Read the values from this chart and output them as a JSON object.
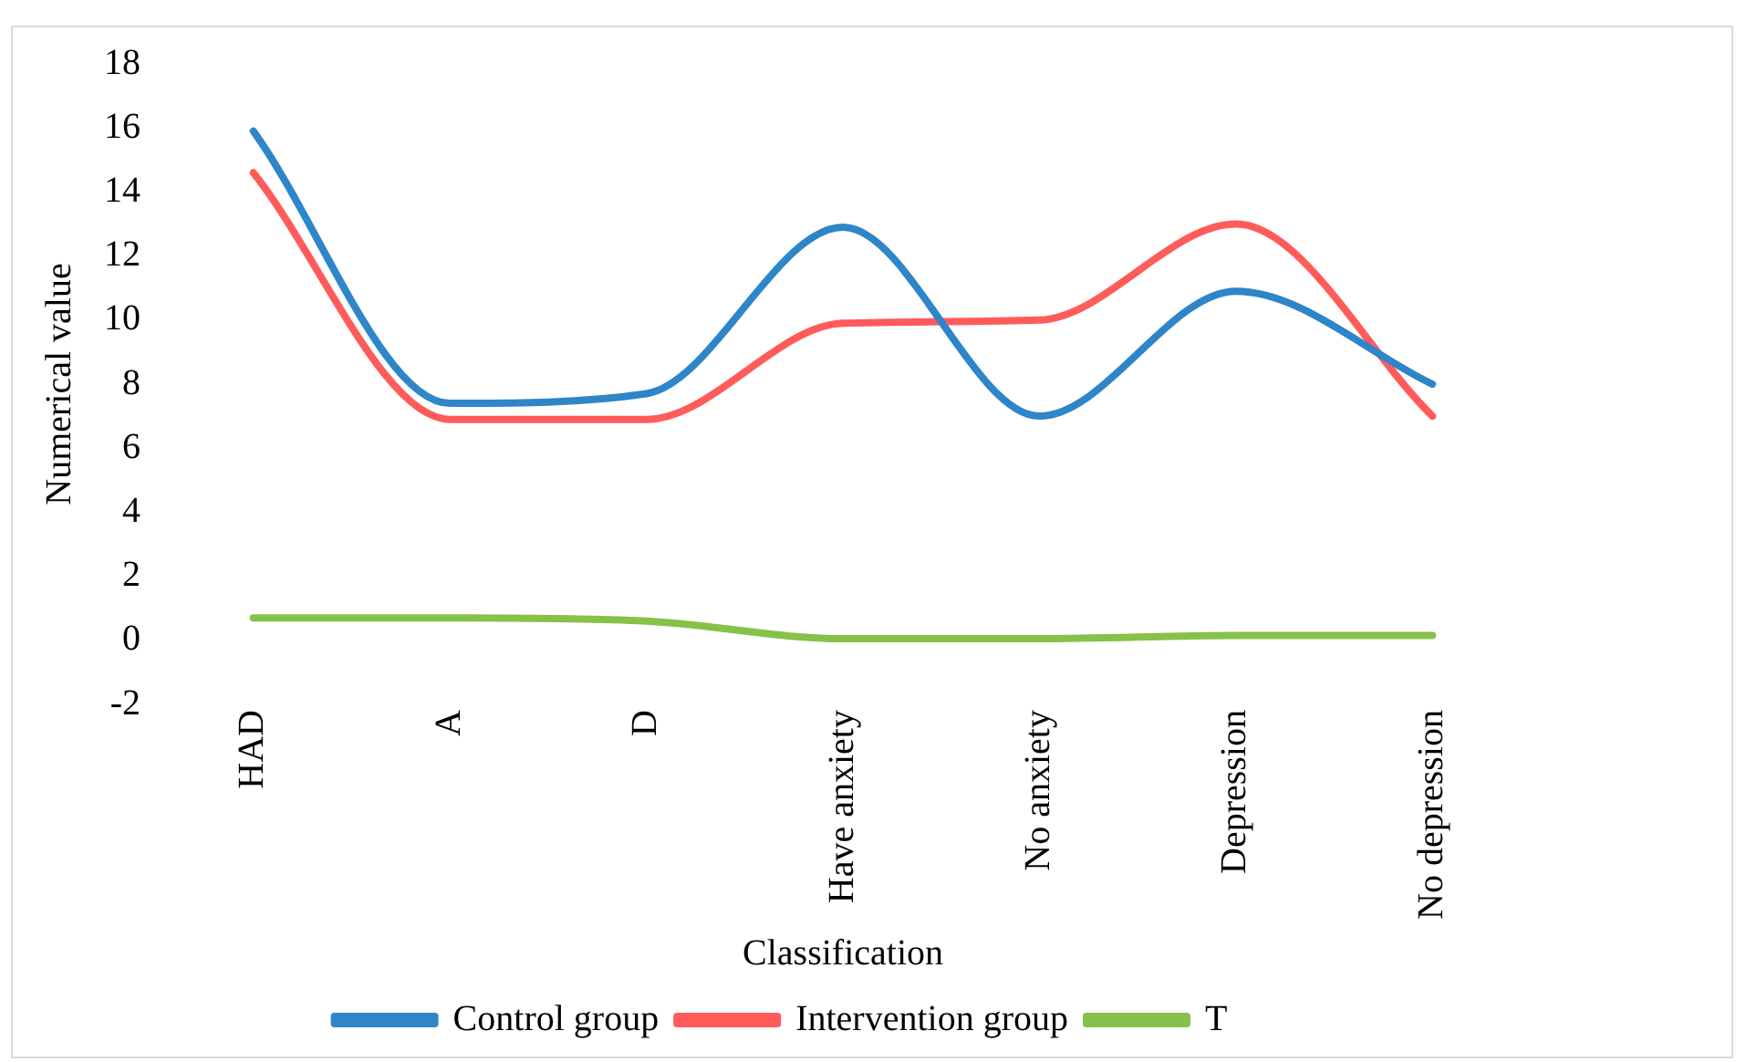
{
  "chart_data": {
    "type": "line",
    "xlabel": "Classification",
    "ylabel": "Numerical value",
    "categories": [
      "HAD",
      "A",
      "D",
      "Have anxiety",
      "No anxiety",
      "Depression",
      "No depression"
    ],
    "series": [
      {
        "name": "Control group",
        "color": "#2e86c8",
        "values": [
          15.9,
          7.4,
          7.7,
          12.9,
          7,
          10.9,
          8
        ]
      },
      {
        "name": "Intervention group",
        "color": "#ff5b5b",
        "values": [
          14.6,
          6.9,
          6.9,
          9.9,
          10,
          13,
          7
        ]
      },
      {
        "name": "T",
        "color": "#86c14a",
        "values": [
          0.7,
          0.7,
          0.6,
          0.05,
          0.05,
          0.15,
          0.15
        ]
      }
    ],
    "ylim": [
      -2,
      18
    ],
    "yticks": [
      -2,
      0,
      2,
      4,
      6,
      8,
      10,
      12,
      14,
      16,
      18
    ],
    "grid": false,
    "legend": "bottom",
    "marker": "none",
    "line_style": "solid"
  }
}
